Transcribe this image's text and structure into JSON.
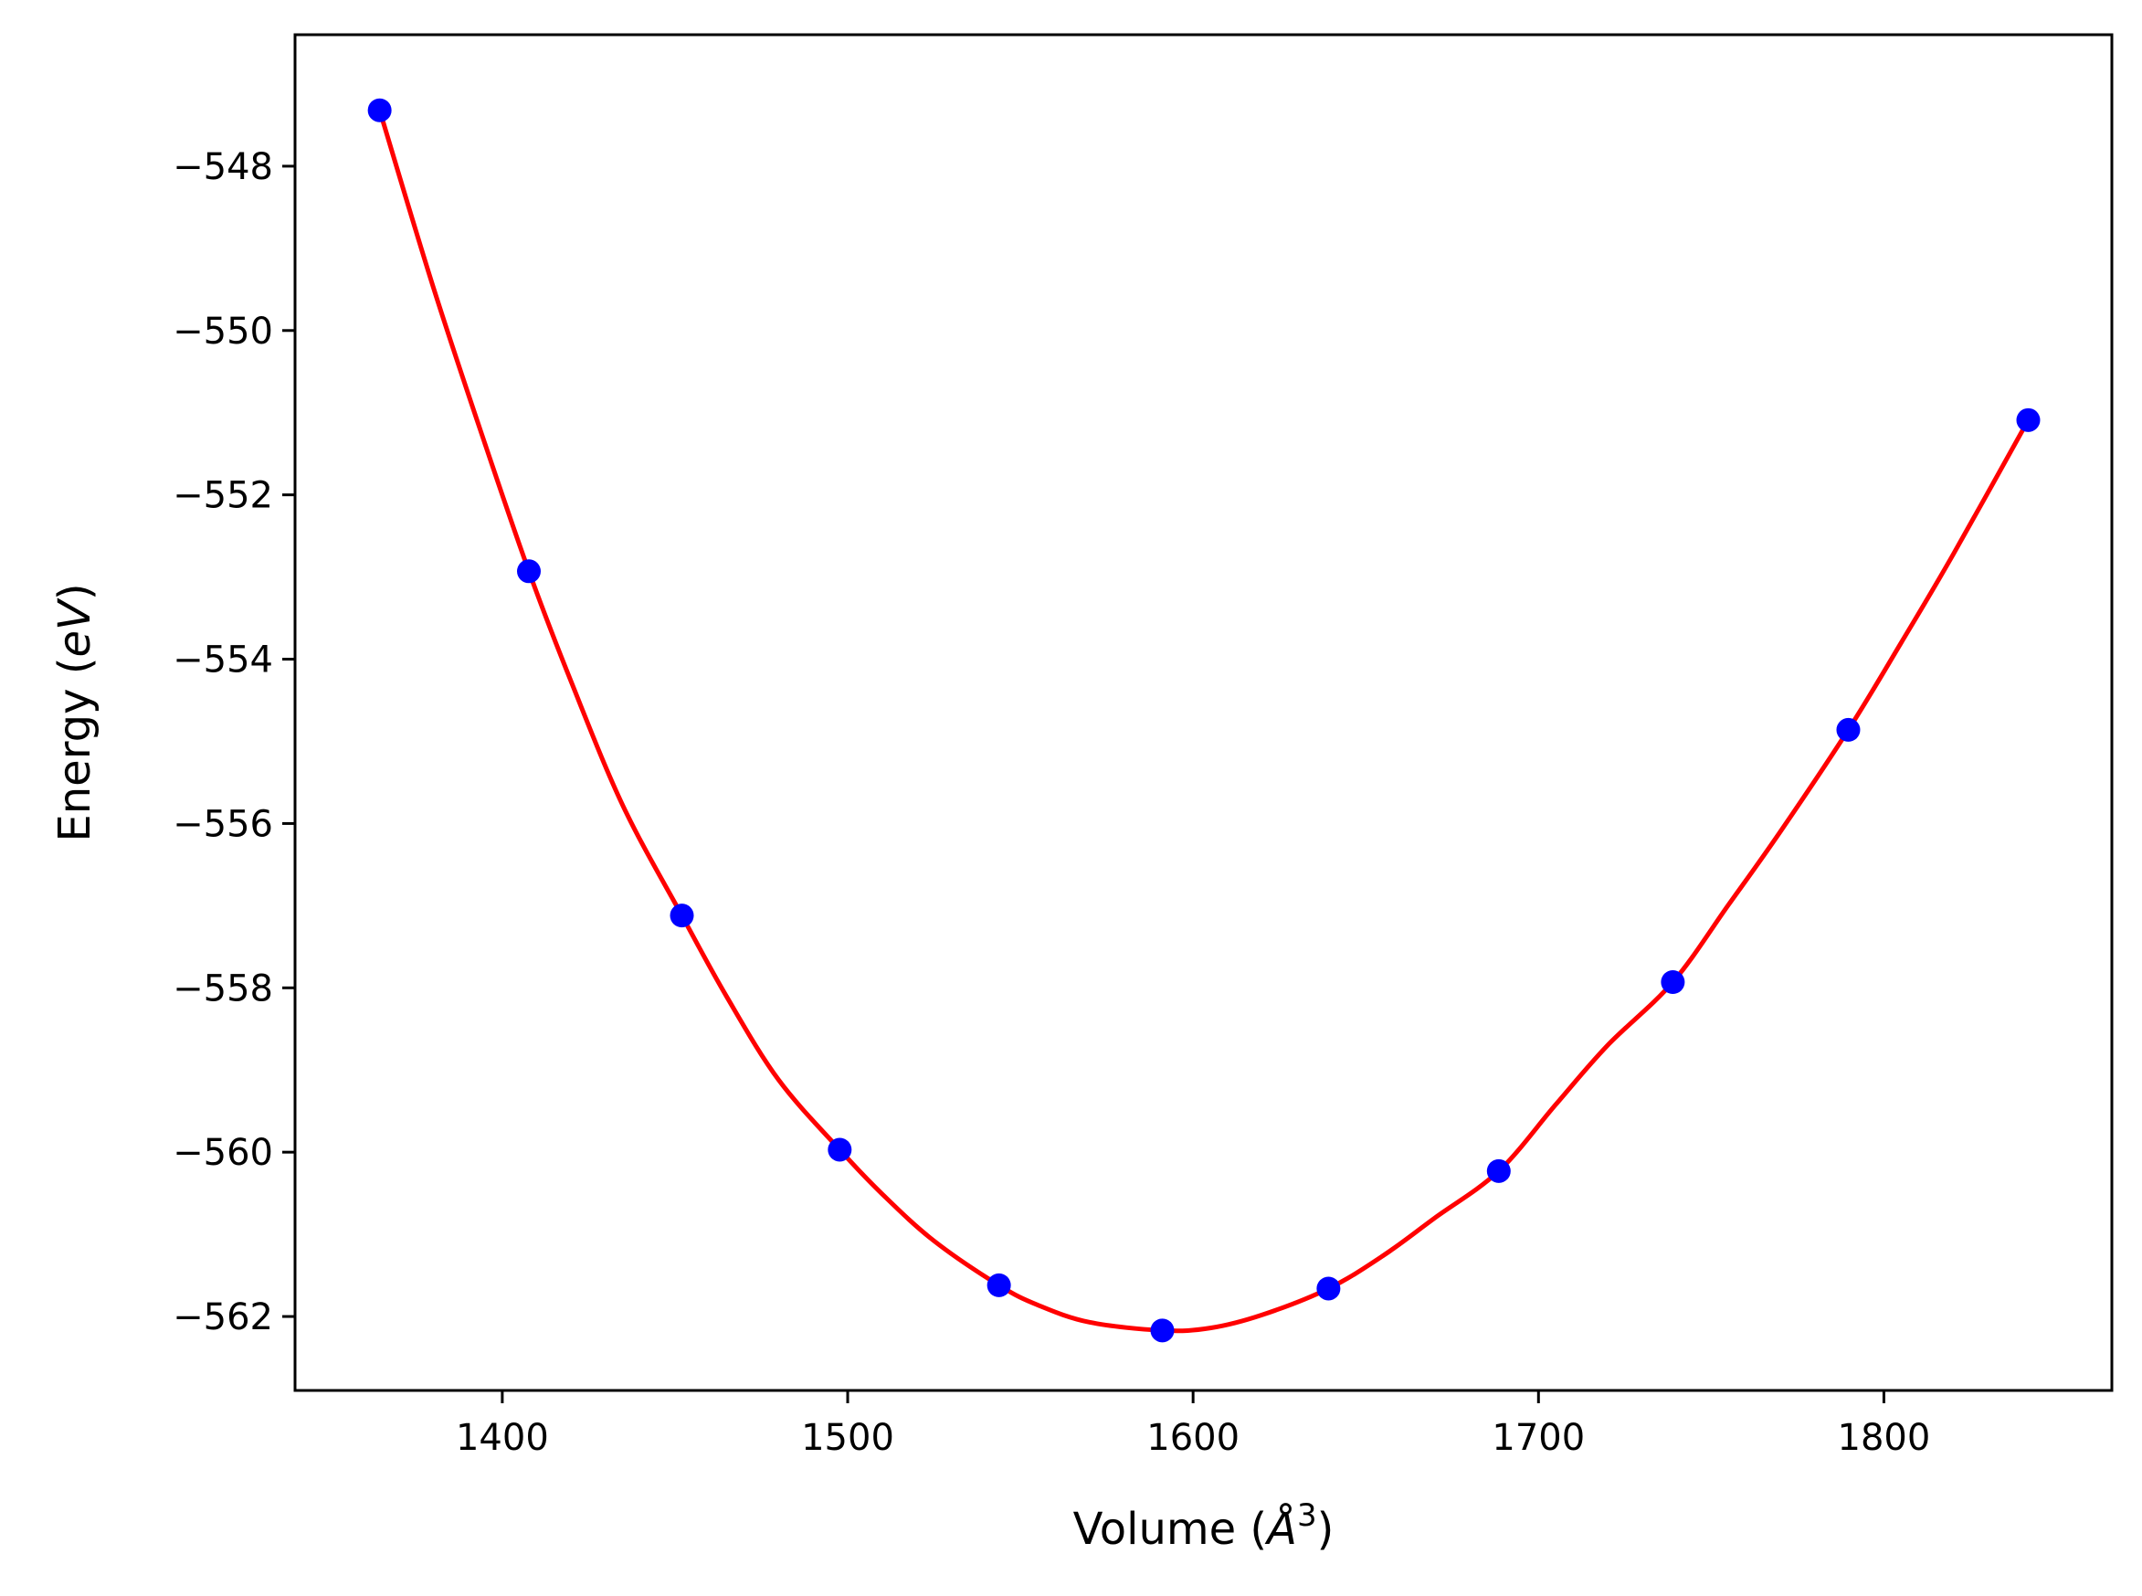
{
  "chart_data": {
    "type": "scatter",
    "title": "",
    "xlabel_parts": [
      "Volume (",
      "Å",
      "3",
      ")"
    ],
    "ylabel_parts": [
      "Energy (",
      "eV",
      ")"
    ],
    "xlim": [
      1340,
      1866
    ],
    "ylim": [
      -562.9,
      -546.4
    ],
    "xticks": [
      1400,
      1500,
      1600,
      1700,
      1800
    ],
    "xtick_labels": [
      "1400",
      "1500",
      "1600",
      "1700",
      "1800"
    ],
    "yticks": [
      -548,
      -550,
      -552,
      -554,
      -556,
      -558,
      -560,
      -562
    ],
    "ytick_labels": [
      "−548",
      "−550",
      "−552",
      "−554",
      "−556",
      "−558",
      "−560",
      "−562"
    ],
    "grid": false,
    "series": [
      {
        "kind": "points",
        "color": "#0000ff",
        "x": [
          1364.5,
          1407.7,
          1452.0,
          1497.7,
          1543.8,
          1591.1,
          1639.2,
          1688.5,
          1738.9,
          1789.7,
          1841.8
        ],
        "y": [
          -547.32,
          -552.93,
          -557.12,
          -559.97,
          -561.62,
          -562.17,
          -561.66,
          -560.23,
          -557.93,
          -554.86,
          -551.09
        ]
      },
      {
        "kind": "fit-curve",
        "color": "#ff0000",
        "x": [
          1364.5,
          1380,
          1395,
          1407.7,
          1420,
          1435,
          1452.0,
          1465,
          1480,
          1497.7,
          1510,
          1525,
          1543.8,
          1555,
          1570,
          1591.1,
          1605,
          1620,
          1639.2,
          1655,
          1670,
          1688.5,
          1705,
          1720,
          1738.9,
          1755,
          1770,
          1789.7,
          1805,
          1820,
          1841.8
        ],
        "y": [
          -547.32,
          -549.47,
          -551.38,
          -552.93,
          -554.28,
          -555.79,
          -557.12,
          -558.11,
          -559.12,
          -559.97,
          -560.51,
          -561.08,
          -561.62,
          -561.86,
          -562.07,
          -562.17,
          -562.14,
          -561.98,
          -561.66,
          -561.26,
          -560.8,
          -560.23,
          -559.42,
          -558.7,
          -557.93,
          -556.99,
          -556.1,
          -554.86,
          -553.8,
          -552.73,
          -551.09
        ]
      }
    ]
  }
}
